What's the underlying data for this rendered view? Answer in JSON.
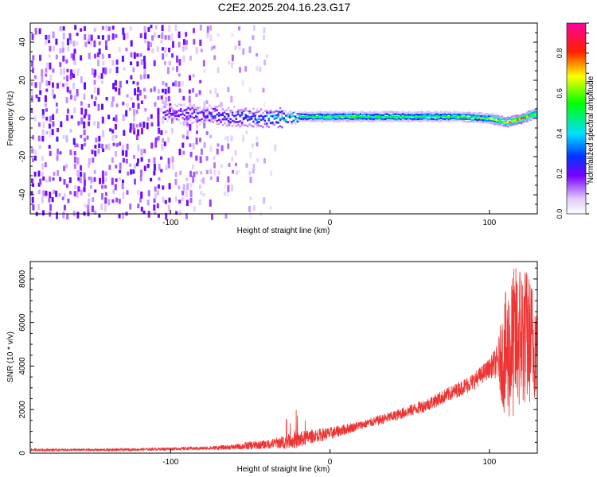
{
  "title": "C2E2.2025.204.16.23.G17",
  "colors": {
    "snr_line": "#ee3333",
    "frame": "#000000"
  },
  "chart_data": [
    {
      "type": "heatmap",
      "name": "spectrogram",
      "xlabel": "Height of straight line (km)",
      "ylabel": "Frequency (Hz)",
      "xlim": [
        -188,
        130
      ],
      "ylim": [
        -50,
        50
      ],
      "x_ticks": [
        -100,
        0,
        100
      ],
      "y_ticks": [
        -40,
        -20,
        0,
        20,
        40
      ],
      "colorbar": {
        "label": "Normalized spectral amplitude",
        "range": [
          0.0,
          0.95
        ],
        "ticks": [
          "0.0",
          "0.2",
          "0.4",
          "0.6",
          "0.8"
        ],
        "colormap": "white-purple-blue-cyan-green-yellow-red-magenta"
      },
      "signal_trace": {
        "x": [
          -100,
          -80,
          -60,
          -40,
          -20,
          0,
          20,
          40,
          60,
          80,
          100,
          110,
          120,
          130
        ],
        "freq_hz": [
          3,
          2,
          1,
          0,
          1,
          1,
          1,
          1,
          1,
          1,
          0,
          -2,
          0,
          3
        ],
        "amplitude": [
          0.22,
          0.25,
          0.3,
          0.35,
          0.5,
          0.55,
          0.55,
          0.55,
          0.55,
          0.55,
          0.6,
          0.75,
          0.8,
          0.6
        ]
      },
      "grid": false
    },
    {
      "type": "line",
      "name": "snr",
      "xlabel": "Height of straight line (km)",
      "ylabel": "SNR (10 * v/v)",
      "xlim": [
        -188,
        130
      ],
      "ylim": [
        0,
        8800
      ],
      "x_ticks": [
        -100,
        0,
        100
      ],
      "y_ticks": [
        0,
        2000,
        4000,
        6000,
        8000
      ],
      "series": [
        {
          "x": [
            -188,
            -160,
            -140,
            -120,
            -100,
            -80,
            -60,
            -50,
            -40,
            -30,
            -20,
            -10,
            0,
            20,
            40,
            60,
            80,
            90,
            100,
            105,
            110,
            115,
            120,
            125,
            130
          ],
          "y": [
            150,
            150,
            150,
            170,
            200,
            220,
            280,
            350,
            400,
            500,
            600,
            800,
            900,
            1300,
            1700,
            2200,
            2900,
            3300,
            3900,
            4200,
            4400,
            5000,
            5500,
            5200,
            5000
          ],
          "noise": [
            60,
            60,
            60,
            60,
            70,
            80,
            120,
            200,
            200,
            300,
            400,
            300,
            300,
            200,
            250,
            300,
            350,
            400,
            450,
            800,
            3000,
            3500,
            3500,
            3000,
            2500
          ]
        }
      ],
      "grid": false
    }
  ]
}
